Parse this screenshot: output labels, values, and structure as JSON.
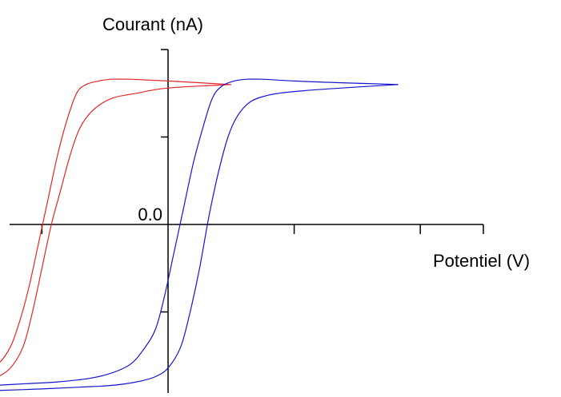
{
  "chart_data": {
    "type": "line",
    "title": "",
    "xlabel": "Potentiel (V)",
    "ylabel": "Courant (nA)",
    "xlim": [
      -1.0,
      1.0
    ],
    "ylim": [
      -1.0,
      1.0
    ],
    "x_tick_values": [
      -0.8,
      -0.4,
      0.0,
      0.4,
      0.8
    ],
    "y_tick_values": [
      -1.0,
      -0.5,
      0.0,
      0.5,
      1.0
    ],
    "y_tick_labels": [
      {
        "value": 0.0,
        "label": "0.0"
      }
    ],
    "grid": false,
    "legend": "none",
    "series": [
      {
        "color": "#e32626",
        "forward": {
          "x": [
            -1.0,
            -0.88,
            -0.78,
            -0.68,
            -0.6,
            -0.54,
            -0.5,
            -0.47,
            -0.44,
            -0.41,
            -0.38,
            -0.35,
            -0.32,
            -0.29,
            -0.26,
            -0.22,
            -0.18,
            -0.12,
            0.0,
            0.2
          ],
          "y": [
            -0.95,
            -0.94,
            -0.93,
            -0.91,
            -0.87,
            -0.8,
            -0.7,
            -0.55,
            -0.35,
            -0.1,
            0.15,
            0.4,
            0.6,
            0.75,
            0.8,
            0.82,
            0.83,
            0.83,
            0.82,
            0.8
          ]
        },
        "reverse": {
          "x": [
            0.2,
            0.0,
            -0.1,
            -0.18,
            -0.24,
            -0.28,
            -0.31,
            -0.34,
            -0.37,
            -0.4,
            -0.43,
            -0.46,
            -0.5,
            -0.55,
            -0.6,
            -0.68,
            -0.78,
            -0.9,
            -1.0
          ],
          "y": [
            0.8,
            0.78,
            0.75,
            0.72,
            0.65,
            0.55,
            0.4,
            0.2,
            0.0,
            -0.25,
            -0.5,
            -0.7,
            -0.82,
            -0.88,
            -0.91,
            -0.93,
            -0.94,
            -0.95,
            -0.96
          ]
        }
      },
      {
        "color": "#1515cf",
        "forward": {
          "x": [
            -0.55,
            -0.45,
            -0.35,
            -0.25,
            -0.18,
            -0.12,
            -0.08,
            -0.04,
            -0.01,
            0.02,
            0.05,
            0.08,
            0.11,
            0.14,
            0.17,
            0.21,
            0.25,
            0.3,
            0.4,
            0.55,
            0.73
          ],
          "y": [
            -0.92,
            -0.91,
            -0.9,
            -0.88,
            -0.85,
            -0.8,
            -0.72,
            -0.6,
            -0.4,
            -0.15,
            0.1,
            0.35,
            0.55,
            0.72,
            0.79,
            0.82,
            0.83,
            0.83,
            0.82,
            0.81,
            0.8
          ]
        },
        "reverse": {
          "x": [
            0.73,
            0.55,
            0.4,
            0.32,
            0.26,
            0.22,
            0.19,
            0.16,
            0.13,
            0.1,
            0.07,
            0.04,
            0.0,
            -0.04,
            -0.1,
            -0.18,
            -0.28,
            -0.4,
            -0.55
          ],
          "y": [
            0.8,
            0.78,
            0.76,
            0.74,
            0.7,
            0.62,
            0.5,
            0.3,
            0.05,
            -0.25,
            -0.5,
            -0.7,
            -0.82,
            -0.87,
            -0.9,
            -0.92,
            -0.93,
            -0.94,
            -0.95
          ]
        }
      }
    ]
  }
}
